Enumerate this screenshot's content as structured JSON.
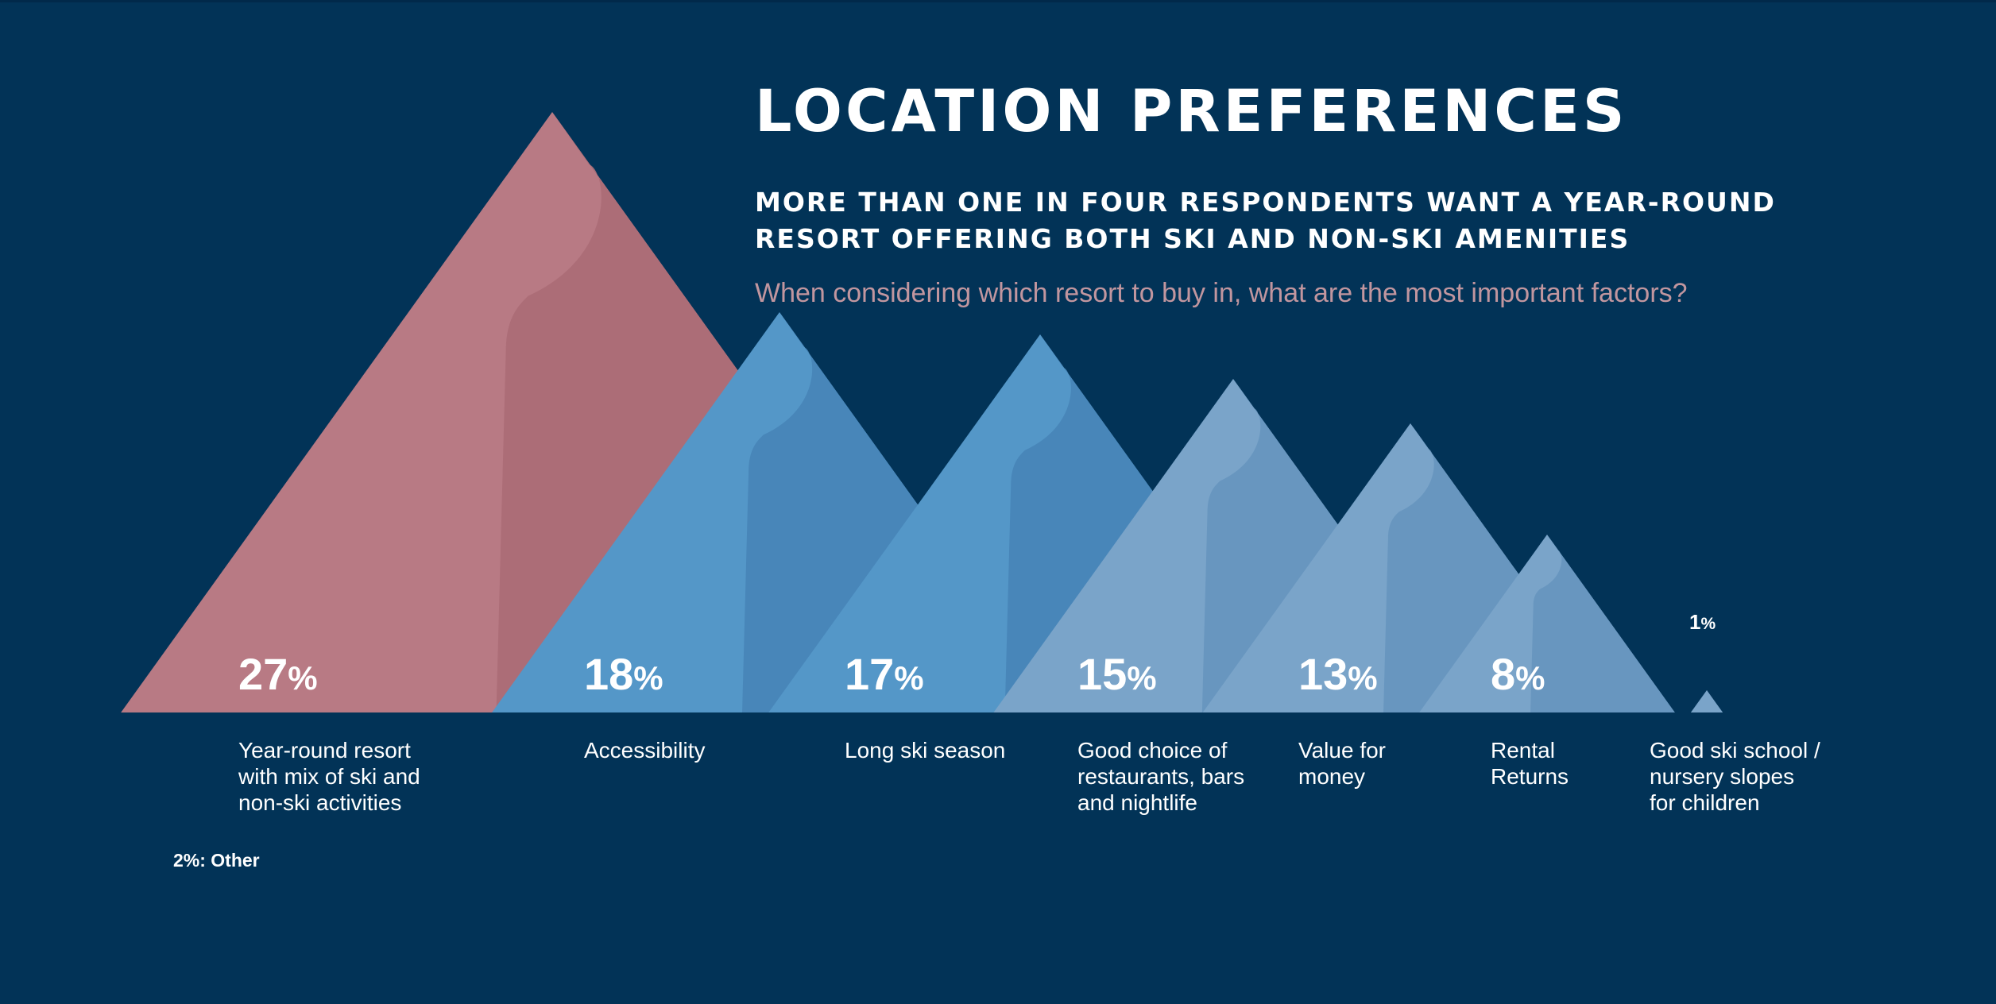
{
  "title": "LOCATION PREFERENCES",
  "subtitle_lines": [
    "MORE THAN ONE IN FOUR RESPONDENTS WANT A YEAR-ROUND",
    "RESORT OFFERING BOTH SKI AND NON-SKI AMENITIES"
  ],
  "question": "When considering which resort to buy in, what are the most important factors?",
  "footnote": "2%: Other",
  "chart_data": {
    "type": "bar",
    "title": "LOCATION PREFERENCES",
    "categories": [
      "Year-round resort with mix of ski and non-ski activities",
      "Accessibility",
      "Long ski season",
      "Good choice of restaurants, bars and nightlife",
      "Value for money",
      "Rental Returns",
      "Good ski school / nursery slopes for children"
    ],
    "category_lines": [
      [
        "Year-round resort",
        "with mix of ski and",
        "non-ski activities"
      ],
      [
        "Accessibility"
      ],
      [
        "Long ski season"
      ],
      [
        "Good choice of",
        "restaurants, bars",
        "and nightlife"
      ],
      [
        "Value for",
        "money"
      ],
      [
        "Rental",
        "Returns"
      ],
      [
        "Good ski school /",
        "nursery slopes",
        "for children"
      ]
    ],
    "values": [
      27,
      18,
      17,
      15,
      13,
      8,
      1
    ],
    "value_labels": [
      "27",
      "18",
      "17",
      "15",
      "13",
      "8",
      "1"
    ],
    "unit": "%",
    "other": {
      "label": "Other",
      "value": 2
    },
    "colors": {
      "background": "#023357",
      "highlight_light": "#b87a84",
      "highlight_dark": "#ac6d77",
      "blue_light": "#5497c8",
      "blue_dark": "#4886b9",
      "pale_light": "#7aa4c9",
      "pale_dark": "#6896bf",
      "question": "#c1969f"
    }
  }
}
